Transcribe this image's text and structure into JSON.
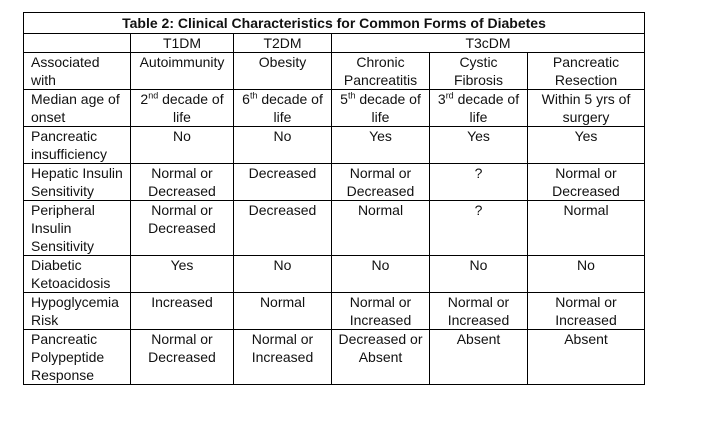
{
  "table": {
    "title": "Table 2: Clinical Characteristics for Common Forms of Diabetes",
    "header": {
      "empty": "",
      "t1dm": "T1DM",
      "t2dm": "T2DM",
      "t3cdm": "T3cDM"
    },
    "rows": [
      {
        "label": [
          "Associated with"
        ],
        "cells": [
          [
            "Autoimmunity"
          ],
          [
            "Obesity"
          ],
          [
            "Chronic",
            "Pancreatitis"
          ],
          [
            "Cystic",
            "Fibrosis"
          ],
          [
            "Pancreatic",
            "Resection"
          ]
        ]
      },
      {
        "label": [
          "Median age of",
          "onset"
        ],
        "cells": [
          {
            "num": "2",
            "sup": "nd",
            "rest": " decade of",
            "line2": "life"
          },
          {
            "num": "6",
            "sup": "th",
            "rest": " decade of",
            "line2": "life"
          },
          {
            "num": "5",
            "sup": "th",
            "rest": " decade of",
            "line2": "life"
          },
          {
            "num": "3",
            "sup": "rd",
            "rest": " decade of",
            "line2": "life"
          },
          {
            "text": "Within 5 yrs of",
            "line2": "surgery"
          }
        ]
      },
      {
        "label": [
          "Pancreatic",
          "insufficiency"
        ],
        "cells": [
          [
            "No"
          ],
          [
            "No"
          ],
          [
            "Yes"
          ],
          [
            "Yes"
          ],
          [
            "Yes"
          ]
        ]
      },
      {
        "label": [
          "Hepatic Insulin",
          "Sensitivity"
        ],
        "cells": [
          [
            "Normal or",
            "Decreased"
          ],
          [
            "Decreased"
          ],
          [
            "Normal or",
            "Decreased"
          ],
          [
            "?"
          ],
          [
            "Normal or",
            "Decreased"
          ]
        ]
      },
      {
        "label": [
          "Peripheral",
          "Insulin",
          "Sensitivity"
        ],
        "cells": [
          [
            "Normal or",
            "Decreased"
          ],
          [
            "Decreased"
          ],
          [
            "Normal"
          ],
          [
            "?"
          ],
          [
            "Normal"
          ]
        ]
      },
      {
        "label": [
          "Diabetic",
          "Ketoacidosis"
        ],
        "cells": [
          [
            "Yes"
          ],
          [
            "No"
          ],
          [
            "No"
          ],
          [
            "No"
          ],
          [
            "No"
          ]
        ]
      },
      {
        "label": [
          "Hypoglycemia",
          "Risk"
        ],
        "cells": [
          [
            "Increased"
          ],
          [
            "Normal"
          ],
          [
            "Normal or",
            "Increased"
          ],
          [
            "Normal or",
            "Increased"
          ],
          [
            "Normal or",
            "Increased"
          ]
        ]
      },
      {
        "label": [
          "Pancreatic",
          "Polypeptide",
          "Response"
        ],
        "cells": [
          [
            "Normal or",
            "Decreased"
          ],
          [
            "Normal or",
            "Increased"
          ],
          [
            "Decreased or",
            "Absent"
          ],
          [
            "Absent"
          ],
          [
            "Absent"
          ]
        ]
      }
    ]
  }
}
